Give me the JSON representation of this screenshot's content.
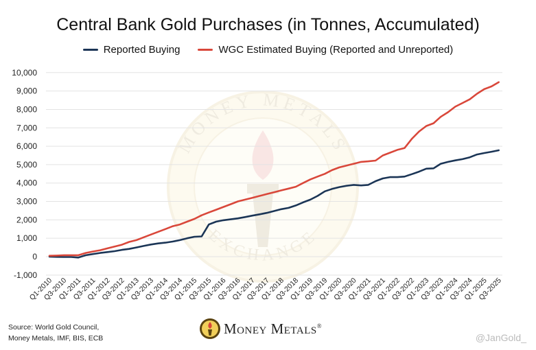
{
  "title": "Central Bank Gold Purchases (in Tonnes, Accumulated)",
  "source_line1": "Source: World Gold Council,",
  "source_line2": "Money Metals, IMF, BIS, ECB",
  "logo_text": "Money Metals",
  "logo_mark": "®",
  "watermark_text_top": "MONEY METALS",
  "watermark_text_bottom": "EXCHANGE",
  "handle": "@JanGold_",
  "chart_data": {
    "type": "line",
    "title": "Central Bank Gold Purchases (in Tonnes, Accumulated)",
    "xlabel": "",
    "ylabel": "",
    "ylim": [
      -1000,
      10000
    ],
    "yticks": [
      -1000,
      0,
      1000,
      2000,
      3000,
      4000,
      5000,
      6000,
      7000,
      8000,
      9000,
      10000
    ],
    "ytick_labels": [
      "-1,000",
      "0",
      "1,000",
      "2,000",
      "3,000",
      "4,000",
      "5,000",
      "6,000",
      "7,000",
      "8,000",
      "9,000",
      "10,000"
    ],
    "grid": true,
    "legend_position": "top",
    "x": [
      "Q1-2010",
      "Q2-2010",
      "Q3-2010",
      "Q4-2010",
      "Q1-2011",
      "Q2-2011",
      "Q3-2011",
      "Q4-2011",
      "Q1-2012",
      "Q2-2012",
      "Q3-2012",
      "Q4-2012",
      "Q1-2013",
      "Q2-2013",
      "Q3-2013",
      "Q4-2013",
      "Q1-2014",
      "Q2-2014",
      "Q3-2014",
      "Q4-2014",
      "Q1-2015",
      "Q2-2015",
      "Q3-2015",
      "Q4-2015",
      "Q1-2016",
      "Q2-2016",
      "Q3-2016",
      "Q4-2016",
      "Q1-2017",
      "Q2-2017",
      "Q3-2017",
      "Q4-2017",
      "Q1-2018",
      "Q2-2018",
      "Q3-2018",
      "Q4-2018",
      "Q1-2019",
      "Q2-2019",
      "Q3-2019",
      "Q4-2019",
      "Q1-2020",
      "Q2-2020",
      "Q3-2020",
      "Q4-2020",
      "Q1-2021",
      "Q2-2021",
      "Q3-2021",
      "Q4-2021",
      "Q1-2022",
      "Q2-2022",
      "Q3-2022",
      "Q4-2022",
      "Q1-2023",
      "Q2-2023",
      "Q3-2023",
      "Q4-2023",
      "Q1-2024",
      "Q2-2024",
      "Q3-2024",
      "Q4-2024",
      "Q1-2025",
      "Q2-2025",
      "Q3-2025"
    ],
    "xtick_labels": [
      "Q1-2010",
      "Q3-2010",
      "Q1-2011",
      "Q3-2011",
      "Q1-2012",
      "Q3-2012",
      "Q1-2013",
      "Q3-2013",
      "Q1-2014",
      "Q3-2014",
      "Q1-2015",
      "Q3-2015",
      "Q1-2016",
      "Q3-2016",
      "Q1-2017",
      "Q3-2017",
      "Q1-2018",
      "Q3-2018",
      "Q1-2019",
      "Q3-2019",
      "Q1-2020",
      "Q3-2020",
      "Q1-2021",
      "Q3-2021",
      "Q1-2022",
      "Q3-2022",
      "Q1-2023",
      "Q3-2023",
      "Q1-2024",
      "Q3-2024",
      "Q1-2025",
      "Q3-2025"
    ],
    "series": [
      {
        "name": "Reported Buying",
        "color": "#1b3556",
        "values": [
          0,
          -10,
          -20,
          -20,
          -50,
          80,
          140,
          200,
          250,
          300,
          370,
          420,
          500,
          580,
          660,
          720,
          760,
          820,
          900,
          1000,
          1080,
          1100,
          1750,
          1900,
          1980,
          2030,
          2080,
          2150,
          2230,
          2300,
          2380,
          2480,
          2580,
          2650,
          2780,
          2950,
          3100,
          3300,
          3550,
          3680,
          3780,
          3850,
          3900,
          3870,
          3900,
          4100,
          4250,
          4320,
          4320,
          4350,
          4480,
          4620,
          4780,
          4800,
          5050,
          5150,
          5230,
          5300,
          5400,
          5550,
          5630,
          5700,
          5780
        ]
      },
      {
        "name": "WGC Estimated Buying (Reported and Unreported)",
        "color": "#d9473a",
        "values": [
          50,
          60,
          80,
          80,
          80,
          200,
          280,
          350,
          450,
          550,
          650,
          800,
          900,
          1050,
          1200,
          1350,
          1500,
          1650,
          1750,
          1900,
          2050,
          2250,
          2400,
          2550,
          2700,
          2850,
          3000,
          3100,
          3200,
          3300,
          3400,
          3500,
          3600,
          3700,
          3800,
          4000,
          4200,
          4350,
          4500,
          4700,
          4850,
          4950,
          5050,
          5150,
          5180,
          5220,
          5500,
          5650,
          5800,
          5900,
          6400,
          6800,
          7100,
          7250,
          7600,
          7850,
          8150,
          8350,
          8550,
          8850,
          9100,
          9250,
          9480
        ]
      }
    ]
  }
}
